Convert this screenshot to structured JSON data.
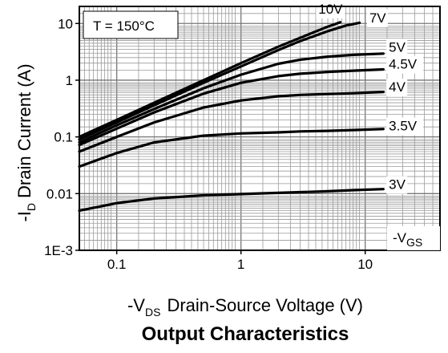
{
  "chart_data": {
    "type": "line",
    "title": "Output Characteristics",
    "annotation": "T = 150°C",
    "xlabel": {
      "prefix": "-V",
      "subscript": "DS",
      "text": "Drain-Source Voltage (V)"
    },
    "ylabel": {
      "prefix": "-I",
      "subscript": "D",
      "text": "Drain Current (A)"
    },
    "x_scale": "log",
    "y_scale": "log",
    "xlim": [
      0.05,
      40
    ],
    "ylim": [
      0.001,
      20
    ],
    "x_ticks": [
      {
        "value": 0.1,
        "label": "0.1"
      },
      {
        "value": 1,
        "label": "1"
      },
      {
        "value": 10,
        "label": "10"
      }
    ],
    "y_ticks": [
      {
        "value": 10,
        "label": "10"
      },
      {
        "value": 1,
        "label": "1"
      },
      {
        "value": 0.1,
        "label": "0.1"
      },
      {
        "value": 0.01,
        "label": "0.01"
      },
      {
        "value": 0.001,
        "label": "1E-3"
      }
    ],
    "grid": true,
    "legend_title": {
      "prefix": "-V",
      "subscript": "GS"
    },
    "series": [
      {
        "name": "10V",
        "x": [
          0.05,
          0.1,
          0.2,
          0.5,
          1,
          2,
          3,
          5,
          6.3
        ],
        "y": [
          0.1,
          0.2,
          0.4,
          1.0,
          2.0,
          3.9,
          5.6,
          8.8,
          10.5
        ]
      },
      {
        "name": "7V",
        "x": [
          0.05,
          0.1,
          0.2,
          0.5,
          1,
          2,
          3,
          5,
          7,
          9
        ],
        "y": [
          0.09,
          0.18,
          0.36,
          0.9,
          1.75,
          3.4,
          4.9,
          7.3,
          9.2,
          10.3
        ]
      },
      {
        "name": "5V",
        "x": [
          0.05,
          0.1,
          0.2,
          0.5,
          1,
          2,
          3,
          5,
          8,
          14
        ],
        "y": [
          0.08,
          0.16,
          0.31,
          0.72,
          1.25,
          1.95,
          2.3,
          2.6,
          2.8,
          2.95
        ]
      },
      {
        "name": "4.5V",
        "x": [
          0.05,
          0.1,
          0.2,
          0.5,
          1,
          2,
          3,
          5,
          8,
          14
        ],
        "y": [
          0.072,
          0.14,
          0.27,
          0.58,
          0.9,
          1.18,
          1.3,
          1.4,
          1.47,
          1.55
        ]
      },
      {
        "name": "4V",
        "x": [
          0.05,
          0.1,
          0.2,
          0.5,
          1,
          2,
          3,
          5,
          8,
          14
        ],
        "y": [
          0.055,
          0.1,
          0.18,
          0.33,
          0.44,
          0.52,
          0.55,
          0.57,
          0.59,
          0.62
        ]
      },
      {
        "name": "3.5V",
        "x": [
          0.05,
          0.1,
          0.2,
          0.5,
          1,
          2,
          3,
          5,
          8,
          14
        ],
        "y": [
          0.03,
          0.052,
          0.08,
          0.105,
          0.115,
          0.12,
          0.125,
          0.128,
          0.132,
          0.138
        ]
      },
      {
        "name": "3V",
        "x": [
          0.05,
          0.1,
          0.2,
          0.5,
          1,
          2,
          3,
          5,
          8,
          14
        ],
        "y": [
          0.005,
          0.0068,
          0.0082,
          0.0093,
          0.0098,
          0.0103,
          0.0106,
          0.011,
          0.0115,
          0.012
        ]
      }
    ],
    "series_labels": [
      {
        "name": "10V",
        "x": 4.2,
        "y": 15
      },
      {
        "name": "7V",
        "x": 10.8,
        "y": 10.5
      },
      {
        "name": "5V",
        "x": 15.5,
        "y": 3.2
      },
      {
        "name": "4.5V",
        "x": 15.5,
        "y": 1.6
      },
      {
        "name": "4V",
        "x": 15.5,
        "y": 0.63
      },
      {
        "name": "3.5V",
        "x": 15.5,
        "y": 0.13
      },
      {
        "name": "3V",
        "x": 15.5,
        "y": 0.012
      }
    ]
  }
}
